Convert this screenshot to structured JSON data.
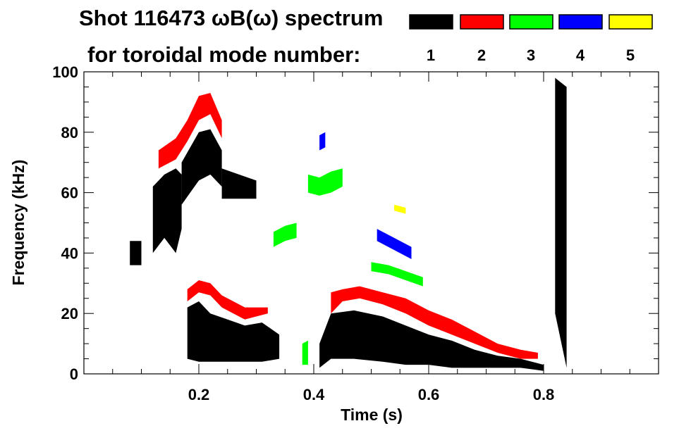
{
  "chart_data": {
    "type": "spectrogram",
    "title_line1": "Shot 116473 ωB(ω) spectrum",
    "title_line2": "for toroidal mode number:",
    "xlabel": "Time (s)",
    "ylabel": "Frequency (kHz)",
    "xlim": [
      0.0,
      1.0
    ],
    "ylim": [
      0,
      100
    ],
    "xticks": [
      0.2,
      0.4,
      0.6,
      0.8
    ],
    "xtick_labels": [
      "0.2",
      "0.4",
      "0.6",
      "0.8"
    ],
    "yticks": [
      0,
      20,
      40,
      60,
      80,
      100
    ],
    "ytick_labels": [
      "0",
      "20",
      "40",
      "60",
      "80",
      "100"
    ],
    "legend": [
      {
        "label": "1",
        "color": "#000000"
      },
      {
        "label": "2",
        "color": "#ff0000"
      },
      {
        "label": "3",
        "color": "#00ff00"
      },
      {
        "label": "4",
        "color": "#0000ff"
      },
      {
        "label": "5",
        "color": "#ffff00"
      }
    ],
    "series": [
      {
        "mode": "1",
        "color": "#000000",
        "regions": [
          {
            "t": [
              0.08,
              0.1
            ],
            "f": [
              [
                36,
                44
              ],
              [
                36,
                44
              ]
            ]
          },
          {
            "t": [
              0.12,
              0.14,
              0.16,
              0.17
            ],
            "f": [
              [
                40,
                62
              ],
              [
                45,
                66
              ],
              [
                40,
                68
              ],
              [
                48,
                66
              ]
            ]
          },
          {
            "t": [
              0.17,
              0.2,
              0.22,
              0.24
            ],
            "f": [
              [
                56,
                70
              ],
              [
                64,
                80
              ],
              [
                66,
                81
              ],
              [
                62,
                74
              ]
            ]
          },
          {
            "t": [
              0.24,
              0.27,
              0.3
            ],
            "f": [
              [
                58,
                68
              ],
              [
                58,
                66
              ],
              [
                58,
                64
              ]
            ]
          },
          {
            "t": [
              0.18,
              0.2,
              0.22,
              0.25,
              0.28,
              0.31,
              0.34
            ],
            "f": [
              [
                5,
                22
              ],
              [
                4,
                24
              ],
              [
                4,
                20
              ],
              [
                4,
                18
              ],
              [
                4,
                16
              ],
              [
                4,
                17
              ],
              [
                5,
                13
              ]
            ]
          },
          {
            "t": [
              0.41,
              0.43,
              0.47,
              0.52,
              0.56,
              0.6,
              0.64,
              0.68,
              0.72,
              0.76,
              0.8
            ],
            "f": [
              [
                2,
                10
              ],
              [
                5,
                20
              ],
              [
                5,
                21
              ],
              [
                4,
                19
              ],
              [
                3,
                16
              ],
              [
                3,
                13
              ],
              [
                2,
                11
              ],
              [
                2,
                8
              ],
              [
                2,
                6
              ],
              [
                2,
                5
              ],
              [
                1,
                3
              ]
            ]
          },
          {
            "t": [
              0.82,
              0.84
            ],
            "f": [
              [
                20,
                98
              ],
              [
                2,
                95
              ]
            ]
          }
        ]
      },
      {
        "mode": "2",
        "color": "#ff0000",
        "regions": [
          {
            "t": [
              0.13,
              0.16,
              0.18,
              0.2,
              0.22,
              0.24
            ],
            "f": [
              [
                68,
                74
              ],
              [
                71,
                78
              ],
              [
                77,
                84
              ],
              [
                84,
                92
              ],
              [
                86,
                93
              ],
              [
                78,
                84
              ]
            ]
          },
          {
            "t": [
              0.18,
              0.2,
              0.22,
              0.24,
              0.26,
              0.28,
              0.3,
              0.32
            ],
            "f": [
              [
                24,
                28
              ],
              [
                27,
                31
              ],
              [
                26,
                30
              ],
              [
                22,
                26
              ],
              [
                20,
                24
              ],
              [
                18,
                22
              ],
              [
                19,
                22
              ],
              [
                20,
                22
              ]
            ]
          },
          {
            "t": [
              0.43,
              0.45,
              0.48,
              0.52,
              0.56,
              0.6,
              0.64,
              0.68,
              0.72,
              0.76,
              0.79
            ],
            "f": [
              [
                20,
                27
              ],
              [
                24,
                28
              ],
              [
                25,
                29
              ],
              [
                23,
                27
              ],
              [
                20,
                25
              ],
              [
                16,
                21
              ],
              [
                13,
                18
              ],
              [
                10,
                14
              ],
              [
                7,
                10
              ],
              [
                5,
                8
              ],
              [
                5,
                7
              ]
            ]
          }
        ]
      },
      {
        "mode": "3",
        "color": "#00ff00",
        "regions": [
          {
            "t": [
              0.33,
              0.35,
              0.37
            ],
            "f": [
              [
                42,
                47
              ],
              [
                44,
                49
              ],
              [
                45,
                50
              ]
            ]
          },
          {
            "t": [
              0.39,
              0.41,
              0.43,
              0.45
            ],
            "f": [
              [
                60,
                66
              ],
              [
                59,
                65
              ],
              [
                60,
                67
              ],
              [
                62,
                68
              ]
            ]
          },
          {
            "t": [
              0.38,
              0.39
            ],
            "f": [
              [
                3,
                10
              ],
              [
                3,
                11
              ]
            ]
          },
          {
            "t": [
              0.5,
              0.53,
              0.56,
              0.59
            ],
            "f": [
              [
                34,
                37
              ],
              [
                33,
                36
              ],
              [
                31,
                34
              ],
              [
                29,
                32
              ]
            ]
          }
        ]
      },
      {
        "mode": "4",
        "color": "#0000ff",
        "regions": [
          {
            "t": [
              0.41,
              0.42
            ],
            "f": [
              [
                74,
                79
              ],
              [
                75,
                80
              ]
            ]
          },
          {
            "t": [
              0.51,
              0.54,
              0.57
            ],
            "f": [
              [
                44,
                48
              ],
              [
                41,
                45
              ],
              [
                38,
                42
              ]
            ]
          }
        ]
      },
      {
        "mode": "5",
        "color": "#ffff00",
        "regions": [
          {
            "t": [
              0.54,
              0.56
            ],
            "f": [
              [
                54,
                56
              ],
              [
                53,
                55
              ]
            ]
          }
        ]
      }
    ]
  }
}
